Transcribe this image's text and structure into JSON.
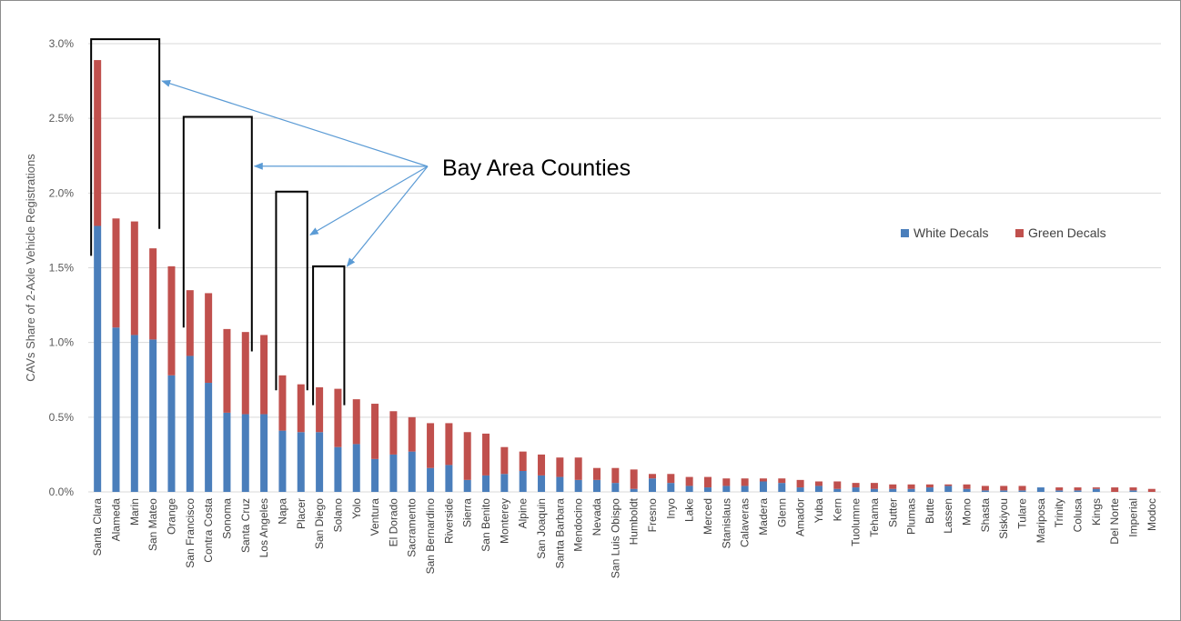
{
  "chart_data": {
    "type": "bar",
    "stacked": true,
    "title": "",
    "xlabel": "",
    "ylabel": "CAVs Share of  2-Axle Vehicle Registrations",
    "ylim": [
      0,
      3.0
    ],
    "y_tick_labels": [
      "0.0%",
      "0.5%",
      "1.0%",
      "1.5%",
      "2.0%",
      "2.5%",
      "3.0%"
    ],
    "y_ticks": [
      0,
      0.5,
      1.0,
      1.5,
      2.0,
      2.5,
      3.0
    ],
    "grid": true,
    "legend_position": "right",
    "categories": [
      "Santa Clara",
      "Alameda",
      "Marin",
      "San Mateo",
      "Orange",
      "San Francisco",
      "Contra Costa",
      "Sonoma",
      "Santa Cruz",
      "Los Angeles",
      "Napa",
      "Placer",
      "San Diego",
      "Solano",
      "Yolo",
      "Ventura",
      "El Dorado",
      "Sacramento",
      "San Bernardino",
      "Riverside",
      "Sierra",
      "San Benito",
      "Monterey",
      "Alpine",
      "San Joaquin",
      "Santa Barbara",
      "Mendocino",
      "Nevada",
      "San Luis Obispo",
      "Humboldt",
      "Fresno",
      "Inyo",
      "Lake",
      "Merced",
      "Stanislaus",
      "Calaveras",
      "Madera",
      "Glenn",
      "Amador",
      "Yuba",
      "Kern",
      "Tuolumne",
      "Tehama",
      "Sutter",
      "Plumas",
      "Butte",
      "Lassen",
      "Mono",
      "Shasta",
      "Siskiyou",
      "Tulare",
      "Mariposa",
      "Trinity",
      "Colusa",
      "Kings",
      "Del Norte",
      "Imperial",
      "Modoc"
    ],
    "series": [
      {
        "name": "White Decals",
        "color": "#4a7ebb",
        "values": [
          1.78,
          1.1,
          1.05,
          1.02,
          0.78,
          0.91,
          0.73,
          0.53,
          0.52,
          0.52,
          0.41,
          0.4,
          0.4,
          0.3,
          0.32,
          0.22,
          0.25,
          0.27,
          0.16,
          0.18,
          0.08,
          0.11,
          0.12,
          0.14,
          0.11,
          0.1,
          0.08,
          0.08,
          0.06,
          0.02,
          0.09,
          0.06,
          0.04,
          0.03,
          0.04,
          0.04,
          0.07,
          0.06,
          0.03,
          0.04,
          0.02,
          0.03,
          0.02,
          0.02,
          0.02,
          0.03,
          0.04,
          0.02,
          0.01,
          0.01,
          0.01,
          0.03,
          0.01,
          0.01,
          0.02,
          0.0,
          0.01,
          0.0
        ]
      },
      {
        "name": "Green Decals",
        "color": "#c0504d",
        "values": [
          1.11,
          0.73,
          0.76,
          0.61,
          0.73,
          0.44,
          0.6,
          0.56,
          0.55,
          0.53,
          0.37,
          0.32,
          0.3,
          0.39,
          0.3,
          0.37,
          0.29,
          0.23,
          0.3,
          0.28,
          0.32,
          0.28,
          0.18,
          0.13,
          0.14,
          0.13,
          0.15,
          0.08,
          0.1,
          0.13,
          0.03,
          0.06,
          0.06,
          0.07,
          0.05,
          0.05,
          0.02,
          0.03,
          0.05,
          0.03,
          0.05,
          0.03,
          0.04,
          0.03,
          0.03,
          0.02,
          0.01,
          0.03,
          0.03,
          0.03,
          0.03,
          0.0,
          0.02,
          0.02,
          0.01,
          0.03,
          0.02,
          0.02
        ]
      }
    ],
    "annotations": [
      {
        "text": "Bay Area Counties",
        "bracketed_categories": [
          [
            "Santa Clara",
            "San Mateo"
          ],
          [
            "San Francisco",
            "Santa Cruz"
          ],
          [
            "Napa",
            "Placer"
          ],
          [
            "San Diego",
            "Solano"
          ]
        ]
      }
    ]
  }
}
